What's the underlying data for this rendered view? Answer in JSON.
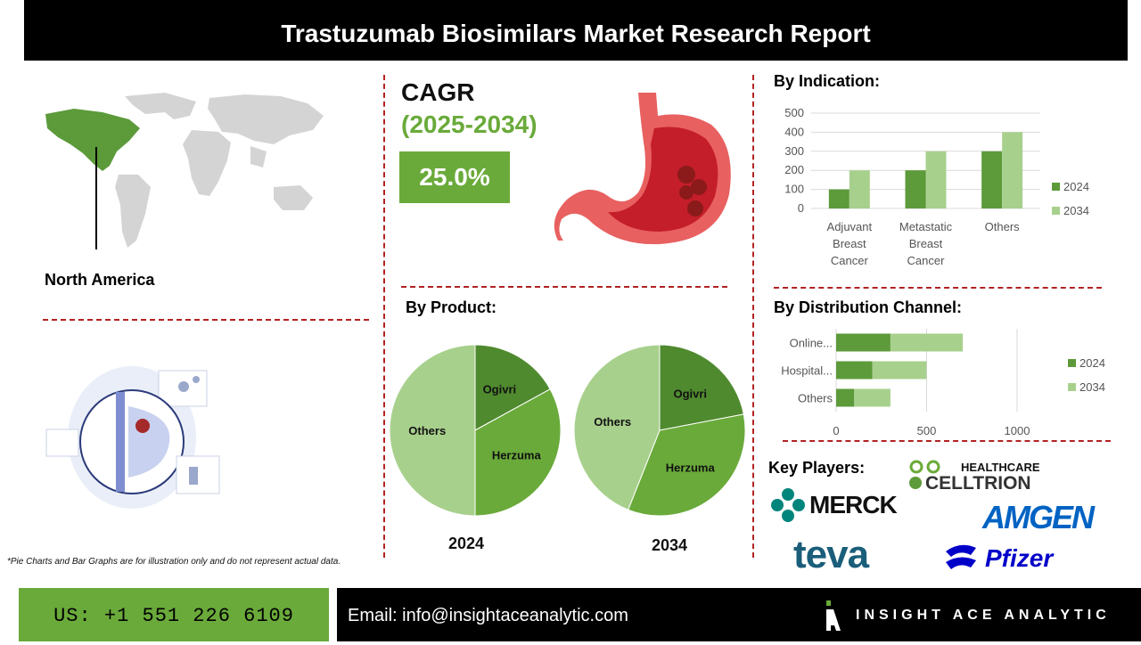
{
  "header": {
    "title": "Trastuzumab Biosimilars Market  Research Report"
  },
  "region": {
    "label": "North America"
  },
  "cagr": {
    "label": "CAGR",
    "years": "(2025-2034)",
    "value": "25.0%"
  },
  "sections": {
    "indication": "By Indication:",
    "product": "By Product:",
    "distribution": "By Distribution Channel:",
    "key_players": "Key Players:"
  },
  "pie_years": {
    "left": "2024",
    "right": "2034"
  },
  "players": {
    "celltrion_top": "HEALTHCARE",
    "celltrion": "CELLTRION",
    "merck": "MERCK",
    "amgen": "AMGEN",
    "teva": "teva",
    "pfizer": "Pfizer"
  },
  "footnote": "*Pie Charts and Bar Graphs are for illustration only and do not represent actual data.",
  "footer": {
    "phone": "US: +1 551 226 6109",
    "email": "Email: info@insightaceanalytic.com",
    "brand": "INSIGHT ACE ANALYTIC"
  },
  "colors": {
    "dark_green": "#5c9a3a",
    "light_green": "#a8d08d",
    "mid_green": "#6aaa3a",
    "accent_red": "#b22222"
  },
  "chart_data": [
    {
      "type": "bar",
      "categories": [
        "Adjuvant Breast Cancer",
        "Metastatic Breast Cancer",
        "Others"
      ],
      "series": [
        {
          "name": "2024",
          "values": [
            100,
            200,
            300
          ]
        },
        {
          "name": "2034",
          "values": [
            200,
            300,
            400
          ]
        }
      ],
      "ylim": [
        0,
        500
      ],
      "yticks": [
        0,
        100,
        200,
        300,
        400,
        500
      ],
      "grid": true,
      "legend": "right"
    },
    {
      "type": "bar",
      "orientation": "horizontal",
      "categories": [
        "Online...",
        "Hospital...",
        "Others"
      ],
      "series": [
        {
          "name": "2024",
          "values": [
            300,
            200,
            100
          ]
        },
        {
          "name": "2034",
          "values": [
            400,
            300,
            200
          ]
        }
      ],
      "stacked": true,
      "xlim": [
        0,
        1000
      ],
      "xticks": [
        0,
        500,
        1000
      ],
      "grid": true,
      "legend": "right"
    },
    {
      "type": "pie",
      "year": "2024",
      "labels": [
        "Ogivri",
        "Herzuma",
        "Others"
      ],
      "values": [
        17,
        33,
        50
      ]
    },
    {
      "type": "pie",
      "year": "2034",
      "labels": [
        "Ogivri",
        "Herzuma",
        "Others"
      ],
      "values": [
        22,
        34,
        44
      ]
    }
  ]
}
